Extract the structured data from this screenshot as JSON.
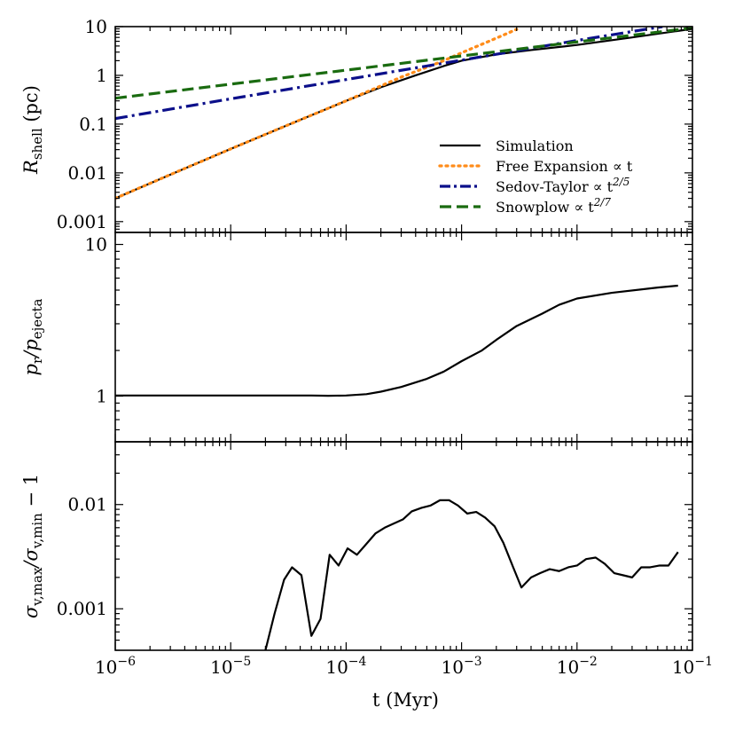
{
  "chart_data": [
    {
      "type": "line",
      "name": "shell-radius",
      "scale": {
        "x": "log",
        "y": "log"
      },
      "xlim": [
        1e-06,
        0.1
      ],
      "ylim": [
        0.0006,
        10
      ],
      "ylabel": {
        "main": "R",
        "sub": "shell",
        "unit": " (pc)"
      },
      "yticks": [
        {
          "value": 0.001,
          "label": "0.001"
        },
        {
          "value": 0.01,
          "label": "0.01"
        },
        {
          "value": 0.1,
          "label": "0.1"
        },
        {
          "value": 1,
          "label": "1"
        },
        {
          "value": 10,
          "label": "10"
        }
      ],
      "legend": {
        "position": "lower-right",
        "entries": [
          {
            "series": 0,
            "label": "Simulation"
          },
          {
            "series": 1,
            "label": "Free Expansion ∝ t"
          },
          {
            "series": 2,
            "label": "Sedov-Taylor ∝ t",
            "sup": "2/5"
          },
          {
            "series": 3,
            "label": "Snowplow ∝ t",
            "sup": "2/7"
          }
        ]
      },
      "series": [
        {
          "name": "Simulation",
          "color": "#000000",
          "style": "solid",
          "x": [
            1e-06,
            3e-06,
            1e-05,
            3e-05,
            0.0001,
            0.0002,
            0.0004,
            0.0007,
            0.001,
            0.002,
            0.004,
            0.01,
            0.03,
            0.1
          ],
          "y": [
            0.003,
            0.0092,
            0.031,
            0.092,
            0.3,
            0.57,
            1.0,
            1.55,
            2.0,
            2.7,
            3.3,
            4.2,
            6.0,
            9.0
          ]
        },
        {
          "name": "Free Expansion",
          "color": "#ff8c1a",
          "style": "dotted",
          "x": [
            1e-06,
            3e-06,
            1e-05,
            3e-05,
            0.0001,
            0.0003,
            0.0007,
            0.001,
            0.002,
            0.003
          ],
          "y": [
            0.003,
            0.0092,
            0.031,
            0.092,
            0.3,
            0.92,
            2.0,
            2.9,
            5.8,
            8.8
          ]
        },
        {
          "name": "Sedov-Taylor",
          "color": "#0b0f8a",
          "style": "dashdot",
          "x": [
            1e-06,
            1e-05,
            0.0001,
            0.001,
            0.01,
            0.055
          ],
          "y": [
            0.13,
            0.33,
            0.82,
            2.05,
            5.2,
            10
          ]
        },
        {
          "name": "Snowplow",
          "color": "#1a6b10",
          "style": "dashed",
          "x": [
            1e-06,
            1e-05,
            0.0001,
            0.001,
            0.01,
            0.1
          ],
          "y": [
            0.34,
            0.66,
            1.28,
            2.5,
            4.85,
            9.4
          ]
        }
      ]
    },
    {
      "type": "line",
      "name": "momentum-ratio",
      "scale": {
        "x": "log",
        "y": "log"
      },
      "xlim": [
        1e-06,
        0.1
      ],
      "ylim": [
        0.5,
        12
      ],
      "ylabel": {
        "main": "p",
        "sub": "r",
        "mid": "/p",
        "sub2": "ejecta"
      },
      "yticks": [
        {
          "value": 1,
          "label": "1"
        },
        {
          "value": 10,
          "label": "10"
        }
      ],
      "series": [
        {
          "name": "Simulation",
          "color": "#000000",
          "style": "solid",
          "x": [
            1e-06,
            1e-05,
            5e-05,
            7e-05,
            0.0001,
            0.00015,
            0.0002,
            0.0003,
            0.0005,
            0.0007,
            0.001,
            0.0015,
            0.002,
            0.003,
            0.005,
            0.007,
            0.01,
            0.02,
            0.05,
            0.075
          ],
          "y": [
            1.01,
            1.01,
            1.01,
            1.005,
            1.01,
            1.03,
            1.07,
            1.15,
            1.3,
            1.45,
            1.7,
            2.0,
            2.35,
            2.9,
            3.5,
            4.0,
            4.4,
            4.8,
            5.2,
            5.35
          ]
        }
      ]
    },
    {
      "type": "line",
      "name": "dispersion-anisotropy",
      "scale": {
        "x": "log",
        "y": "log"
      },
      "xlim": [
        1e-06,
        0.1
      ],
      "xlabel": "t (Myr)",
      "ylim": [
        0.0004,
        0.04
      ],
      "ylabel": {
        "main": "σ",
        "sub": "v,max",
        "mid": "/σ",
        "sub2": "v,min",
        "tail": " − 1"
      },
      "xticks": [
        {
          "value": 1e-06,
          "label": "10",
          "sup": "−6"
        },
        {
          "value": 1e-05,
          "label": "10",
          "sup": "−5"
        },
        {
          "value": 0.0001,
          "label": "10",
          "sup": "−4"
        },
        {
          "value": 0.001,
          "label": "10",
          "sup": "−3"
        },
        {
          "value": 0.01,
          "label": "10",
          "sup": "−2"
        },
        {
          "value": 0.1,
          "label": "10",
          "sup": "−1"
        }
      ],
      "yticks": [
        {
          "value": 0.001,
          "label": "0.001"
        },
        {
          "value": 0.01,
          "label": "0.01"
        }
      ],
      "series": [
        {
          "name": "Simulation",
          "color": "#000000",
          "style": "solid",
          "x": [
            2e-05,
            2.4e-05,
            2.9e-05,
            3.4e-05,
            4.1e-05,
            5e-05,
            6e-05,
            7.2e-05,
            8.6e-05,
            0.000103,
            0.000124,
            0.00015,
            0.00018,
            0.000216,
            0.00026,
            0.00031,
            0.00037,
            0.00045,
            0.00054,
            0.00065,
            0.00078,
            0.00093,
            0.00112,
            0.00134,
            0.0016,
            0.00193,
            0.0023,
            0.0028,
            0.0033,
            0.004,
            0.0048,
            0.0058,
            0.007,
            0.0084,
            0.01,
            0.012,
            0.0145,
            0.0174,
            0.021,
            0.025,
            0.03,
            0.036,
            0.043,
            0.052,
            0.062,
            0.075
          ],
          "y": [
            0.0004,
            0.0009,
            0.0019,
            0.0025,
            0.0021,
            0.00055,
            0.0008,
            0.0033,
            0.0026,
            0.0038,
            0.0033,
            0.0042,
            0.0053,
            0.006,
            0.0066,
            0.0072,
            0.0086,
            0.0093,
            0.0098,
            0.011,
            0.011,
            0.0098,
            0.0082,
            0.0085,
            0.0075,
            0.0062,
            0.0043,
            0.0025,
            0.0016,
            0.002,
            0.0022,
            0.0024,
            0.0023,
            0.0025,
            0.0026,
            0.003,
            0.0031,
            0.0027,
            0.0022,
            0.0021,
            0.002,
            0.0025,
            0.0025,
            0.0026,
            0.0026,
            0.0035
          ]
        }
      ]
    }
  ]
}
